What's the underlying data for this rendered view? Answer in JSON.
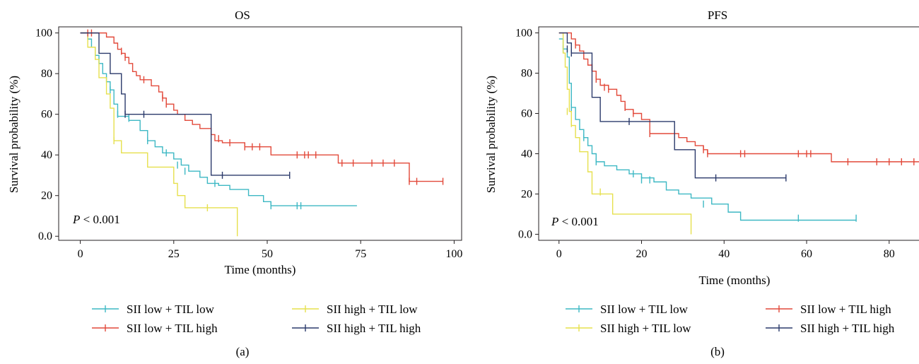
{
  "chart_data": [
    {
      "type": "line",
      "panel_label": "(a)",
      "title": "OS",
      "xlabel": "Time (months)",
      "ylabel": "Survival probability (%)",
      "xlim": [
        -2,
        102
      ],
      "ylim": [
        -2,
        103
      ],
      "x_ticks": [
        0,
        25,
        50,
        75,
        100
      ],
      "y_ticks": [
        0,
        20,
        40,
        60,
        80,
        100
      ],
      "y_tick_labels": [
        "0.0",
        "20",
        "40",
        "60",
        "80",
        "100"
      ],
      "pvalue": {
        "prefix": "P",
        "rest": " < 0.001"
      },
      "legend": [
        {
          "name": "SII low + TIL low",
          "color": "#3db8c4"
        },
        {
          "name": "SII high + TIL low",
          "color": "#e6e04d"
        },
        {
          "name": "SII low + TIL high",
          "color": "#e2493a"
        },
        {
          "name": "SII high + TIL high",
          "color": "#2b3a6b"
        }
      ],
      "series": [
        {
          "name": "SII low + TIL low",
          "color": "#3db8c4",
          "points": [
            [
              0,
              100
            ],
            [
              2,
              97
            ],
            [
              3,
              93
            ],
            [
              4,
              89
            ],
            [
              5,
              85
            ],
            [
              6,
              80
            ],
            [
              7,
              76
            ],
            [
              8,
              72
            ],
            [
              9,
              65
            ],
            [
              10,
              59
            ],
            [
              13,
              57
            ],
            [
              16,
              52
            ],
            [
              18,
              47
            ],
            [
              20,
              44
            ],
            [
              22,
              41
            ],
            [
              25,
              38
            ],
            [
              27,
              35
            ],
            [
              29,
              32
            ],
            [
              32,
              29
            ],
            [
              34,
              26
            ],
            [
              37,
              25
            ],
            [
              40,
              23
            ],
            [
              45,
              20
            ],
            [
              49,
              17
            ],
            [
              51,
              15
            ],
            [
              74,
              15
            ]
          ],
          "censors": [
            [
              8,
              72
            ],
            [
              10,
              60
            ],
            [
              13,
              58
            ],
            [
              18,
              47
            ],
            [
              23,
              41
            ],
            [
              26,
              35
            ],
            [
              28,
              32
            ],
            [
              36,
              26
            ],
            [
              51,
              15
            ],
            [
              58,
              15
            ],
            [
              59,
              15
            ]
          ]
        },
        {
          "name": "SII high + TIL low",
          "color": "#e6e04d",
          "points": [
            [
              0,
              100
            ],
            [
              2,
              93
            ],
            [
              4,
              87
            ],
            [
              5,
              78
            ],
            [
              7,
              70
            ],
            [
              8,
              63
            ],
            [
              9,
              47
            ],
            [
              11,
              41
            ],
            [
              18,
              34
            ],
            [
              25,
              26
            ],
            [
              26,
              20
            ],
            [
              28,
              14
            ],
            [
              42,
              14
            ],
            [
              42,
              0
            ]
          ],
          "censors": [
            [
              9,
              47
            ],
            [
              34,
              14
            ]
          ]
        },
        {
          "name": "SII low + TIL high",
          "color": "#e2493a",
          "points": [
            [
              0,
              100
            ],
            [
              7,
              98
            ],
            [
              9,
              95
            ],
            [
              10,
              92
            ],
            [
              11,
              90
            ],
            [
              12,
              88
            ],
            [
              13,
              85
            ],
            [
              14,
              81
            ],
            [
              15,
              79
            ],
            [
              16,
              77
            ],
            [
              19,
              74
            ],
            [
              21,
              71
            ],
            [
              22,
              68
            ],
            [
              23,
              65
            ],
            [
              25,
              62
            ],
            [
              26,
              60
            ],
            [
              28,
              57
            ],
            [
              30,
              55
            ],
            [
              32,
              53
            ],
            [
              35,
              50
            ],
            [
              36,
              47
            ],
            [
              38,
              46
            ],
            [
              44,
              44
            ],
            [
              51,
              40
            ],
            [
              69,
              36
            ],
            [
              88,
              36
            ],
            [
              88,
              27
            ],
            [
              97,
              27
            ]
          ],
          "censors": [
            [
              2,
              100
            ],
            [
              3,
              100
            ],
            [
              11,
              91
            ],
            [
              12,
              88
            ],
            [
              17,
              77
            ],
            [
              22,
              68
            ],
            [
              23,
              65
            ],
            [
              37,
              48
            ],
            [
              40,
              46
            ],
            [
              44,
              44
            ],
            [
              46,
              44
            ],
            [
              48,
              44
            ],
            [
              58,
              40
            ],
            [
              60,
              40
            ],
            [
              61,
              40
            ],
            [
              63,
              40
            ],
            [
              70,
              36
            ],
            [
              73,
              36
            ],
            [
              78,
              36
            ],
            [
              81,
              36
            ],
            [
              84,
              36
            ],
            [
              88,
              27
            ],
            [
              90,
              27
            ],
            [
              97,
              27
            ]
          ]
        },
        {
          "name": "SII high + TIL high",
          "color": "#2b3a6b",
          "points": [
            [
              0,
              100
            ],
            [
              5,
              90
            ],
            [
              8,
              80
            ],
            [
              11,
              70
            ],
            [
              12,
              60
            ],
            [
              35,
              60
            ],
            [
              35,
              30
            ],
            [
              56,
              30
            ]
          ],
          "censors": [
            [
              12,
              60
            ],
            [
              17,
              60
            ],
            [
              38,
              30
            ],
            [
              56,
              30
            ]
          ]
        }
      ]
    },
    {
      "type": "line",
      "panel_label": "(b)",
      "title": "PFS",
      "xlabel": "Time (months)",
      "ylabel": "Survival probability (%)",
      "xlim": [
        -1.5,
        91
      ],
      "ylim": [
        -3,
        103
      ],
      "x_ticks": [
        0,
        20,
        40,
        60,
        80
      ],
      "y_ticks": [
        0,
        20,
        40,
        60,
        80,
        100
      ],
      "y_tick_labels": [
        "0.0",
        "20",
        "40",
        "60",
        "80",
        "100"
      ],
      "pvalue": {
        "prefix": "P",
        "rest": " < 0.001"
      },
      "legend": [
        {
          "name": "SII low + TIL low",
          "color": "#3db8c4"
        },
        {
          "name": "SII low + TIL high",
          "color": "#e2493a"
        },
        {
          "name": "SII high + TIL low",
          "color": "#e6e04d"
        },
        {
          "name": "SII high + TIL high",
          "color": "#2b3a6b"
        }
      ],
      "series": [
        {
          "name": "SII low + TIL low",
          "color": "#3db8c4",
          "points": [
            [
              0,
              97
            ],
            [
              1,
              92
            ],
            [
              2,
              88
            ],
            [
              2.5,
              75
            ],
            [
              3,
              63
            ],
            [
              4,
              57
            ],
            [
              5,
              52
            ],
            [
              6,
              48
            ],
            [
              7,
              44
            ],
            [
              8,
              40
            ],
            [
              9,
              36
            ],
            [
              11,
              34
            ],
            [
              14,
              32
            ],
            [
              17,
              30
            ],
            [
              20,
              28
            ],
            [
              23,
              26
            ],
            [
              26,
              22
            ],
            [
              29,
              20
            ],
            [
              32,
              18
            ],
            [
              37,
              15
            ],
            [
              41,
              11
            ],
            [
              44,
              7
            ],
            [
              72,
              7
            ]
          ],
          "censors": [
            [
              1,
              92
            ],
            [
              3,
              63
            ],
            [
              6,
              48
            ],
            [
              9,
              36
            ],
            [
              18,
              30
            ],
            [
              20,
              27
            ],
            [
              22,
              27
            ],
            [
              35,
              15
            ],
            [
              58,
              8
            ],
            [
              72,
              8
            ]
          ]
        },
        {
          "name": "SII high + TIL low",
          "color": "#e6e04d",
          "points": [
            [
              0,
              100
            ],
            [
              1,
              90
            ],
            [
              1.5,
              83
            ],
            [
              2,
              72
            ],
            [
              2.5,
              61
            ],
            [
              3,
              54
            ],
            [
              4,
              48
            ],
            [
              5,
              41
            ],
            [
              7,
              31
            ],
            [
              8,
              20
            ],
            [
              13,
              10
            ],
            [
              32,
              10
            ],
            [
              32,
              0
            ]
          ],
          "censors": [
            [
              2,
              61
            ],
            [
              3,
              55
            ],
            [
              10,
              21
            ]
          ]
        },
        {
          "name": "SII low + TIL high",
          "color": "#e2493a",
          "points": [
            [
              0,
              100
            ],
            [
              3,
              97
            ],
            [
              4,
              94
            ],
            [
              5,
              91
            ],
            [
              6,
              87
            ],
            [
              7,
              84
            ],
            [
              8,
              81
            ],
            [
              9,
              77
            ],
            [
              10,
              74
            ],
            [
              12,
              72
            ],
            [
              14,
              69
            ],
            [
              15,
              66
            ],
            [
              16,
              62
            ],
            [
              18,
              60
            ],
            [
              20,
              57
            ],
            [
              22,
              50
            ],
            [
              29,
              48
            ],
            [
              31,
              46
            ],
            [
              33,
              44
            ],
            [
              35,
              42
            ],
            [
              36,
              40
            ],
            [
              66,
              36
            ],
            [
              88,
              36
            ],
            [
              88,
              18
            ],
            [
              89,
              18
            ]
          ],
          "censors": [
            [
              4,
              94
            ],
            [
              8,
              83
            ],
            [
              9,
              77
            ],
            [
              11,
              73
            ],
            [
              12,
              72
            ],
            [
              16,
              63
            ],
            [
              18,
              60
            ],
            [
              22,
              50
            ],
            [
              35,
              42
            ],
            [
              36,
              40
            ],
            [
              44,
              40
            ],
            [
              45,
              40
            ],
            [
              58,
              40
            ],
            [
              60,
              40
            ],
            [
              61,
              40
            ],
            [
              70,
              36
            ],
            [
              77,
              36
            ],
            [
              80,
              36
            ],
            [
              83,
              36
            ],
            [
              86,
              36
            ],
            [
              89,
              18
            ]
          ]
        },
        {
          "name": "SII high + TIL high",
          "color": "#2b3a6b",
          "points": [
            [
              0,
              100
            ],
            [
              2,
              95
            ],
            [
              3,
              90
            ],
            [
              8,
              90
            ],
            [
              8,
              68
            ],
            [
              10,
              56
            ],
            [
              28,
              56
            ],
            [
              28,
              42
            ],
            [
              33,
              42
            ],
            [
              33,
              28
            ],
            [
              55,
              28
            ]
          ],
          "censors": [
            [
              2,
              92
            ],
            [
              3,
              90
            ],
            [
              17,
              56
            ],
            [
              38,
              28
            ],
            [
              55,
              28
            ]
          ]
        }
      ]
    }
  ]
}
